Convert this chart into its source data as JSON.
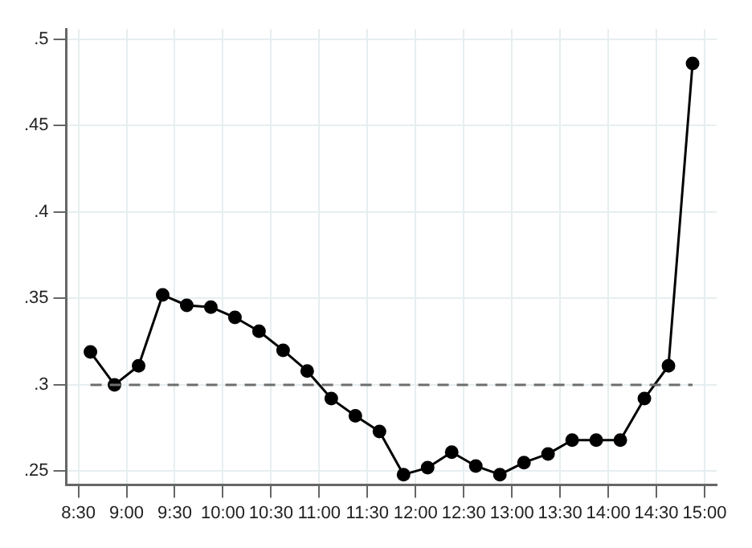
{
  "chart_data": {
    "type": "line",
    "x": [
      8.625,
      8.875,
      9.125,
      9.375,
      9.625,
      9.875,
      10.125,
      10.375,
      10.625,
      10.875,
      11.125,
      11.375,
      11.625,
      11.875,
      12.125,
      12.375,
      12.625,
      12.875,
      13.125,
      13.375,
      13.625,
      13.875,
      14.125,
      14.375,
      14.625,
      14.875
    ],
    "series": [
      {
        "color": "#000000",
        "values": [
          0.319,
          0.3,
          0.311,
          0.352,
          0.346,
          0.345,
          0.339,
          0.331,
          0.32,
          0.308,
          0.292,
          0.282,
          0.273,
          0.248,
          0.252,
          0.261,
          0.253,
          0.248,
          0.255,
          0.26,
          0.268,
          0.268,
          0.268,
          0.292,
          0.311,
          0.486
        ]
      }
    ],
    "marker": "circle",
    "line_style": "solid",
    "xlim": [
      8.375,
      15.125
    ],
    "xticks": [
      {
        "value": 8.5,
        "label": "8:30"
      },
      {
        "value": 9,
        "label": "9:00"
      },
      {
        "value": 9.5,
        "label": "9:30"
      },
      {
        "value": 10,
        "label": "10:00"
      },
      {
        "value": 10.5,
        "label": "10:30"
      },
      {
        "value": 11,
        "label": "11:00"
      },
      {
        "value": 11.5,
        "label": "11:30"
      },
      {
        "value": 12,
        "label": "12:00"
      },
      {
        "value": 12.5,
        "label": "12:30"
      },
      {
        "value": 13,
        "label": "13:00"
      },
      {
        "value": 13.5,
        "label": "13:30"
      },
      {
        "value": 14,
        "label": "14:00"
      },
      {
        "value": 14.5,
        "label": "14:30"
      },
      {
        "value": 15,
        "label": "15:00"
      }
    ],
    "ylim": [
      0.242,
      0.506
    ],
    "yticks": [
      {
        "value": 0.25,
        "label": ".25"
      },
      {
        "value": 0.3,
        "label": ".3"
      },
      {
        "value": 0.35,
        "label": ".35"
      },
      {
        "value": 0.4,
        "label": ".4"
      },
      {
        "value": 0.45,
        "label": ".45"
      },
      {
        "value": 0.5,
        "label": ".5"
      }
    ],
    "ref_lines": [
      {
        "axis": "y",
        "value": 0.3,
        "color": "#6e6e6e",
        "line_style": "dashed"
      }
    ],
    "grid": true,
    "legend": false
  }
}
